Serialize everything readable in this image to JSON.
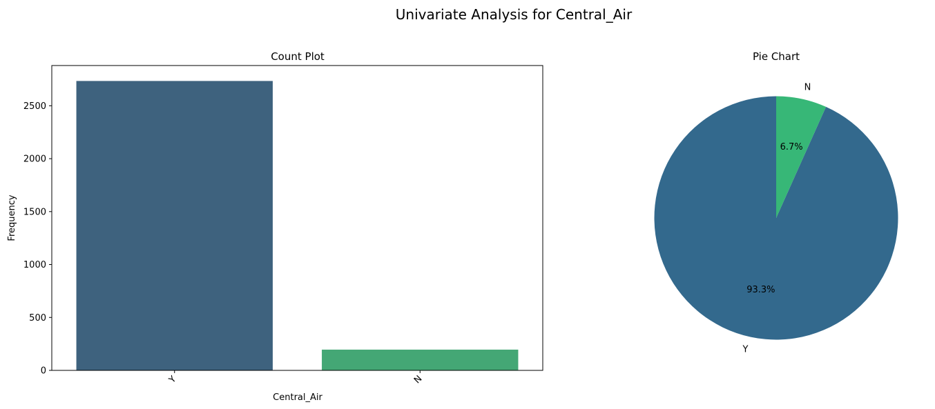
{
  "figure": {
    "title": "Univariate Analysis for Central_Air"
  },
  "colors": {
    "y_bar": "#3e627e",
    "n_bar": "#44a775",
    "y_slice": "#33698d",
    "n_slice": "#37b777"
  },
  "chart_data": [
    {
      "type": "bar",
      "title": "Count Plot",
      "xlabel": "Central_Air",
      "ylabel": "Frequency",
      "categories": [
        "Y",
        "N"
      ],
      "values": [
        2734,
        196
      ],
      "ylim": [
        0,
        2880
      ],
      "yticks": [
        0,
        500,
        1000,
        1500,
        2000,
        2500
      ],
      "grid": false,
      "legend": "none"
    },
    {
      "type": "pie",
      "title": "Pie Chart",
      "labels": [
        "Y",
        "N"
      ],
      "values": [
        93.3,
        6.7
      ],
      "percent_labels": [
        "93.3%",
        "6.7%"
      ],
      "start_angle": 90,
      "legend": "none"
    }
  ]
}
